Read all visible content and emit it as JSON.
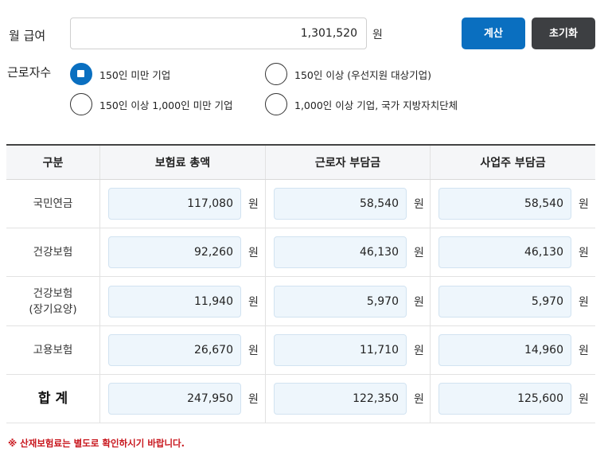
{
  "salary": {
    "label": "월 급여",
    "value": "1,301,520",
    "unit": "원"
  },
  "buttons": {
    "calc": "계산",
    "reset": "초기화"
  },
  "workers": {
    "label": "근로자수",
    "options": [
      {
        "label": "150인 미만 기업",
        "checked": true
      },
      {
        "label": "150인 이상 (우선지원 대상기업)",
        "checked": false
      },
      {
        "label": "150인 이상 1,000인 미만 기업",
        "checked": false
      },
      {
        "label": "1,000인 이상 기업, 국가 지방자치단체",
        "checked": false
      }
    ]
  },
  "table": {
    "headers": [
      "구분",
      "보험료 총액",
      "근로자 부담금",
      "사업주 부담금"
    ],
    "unit": "원",
    "rows": [
      {
        "label": "국민연금",
        "total": "117,080",
        "employee": "58,540",
        "employer": "58,540"
      },
      {
        "label": "건강보험",
        "total": "92,260",
        "employee": "46,130",
        "employer": "46,130"
      },
      {
        "label": "건강보험",
        "label2": "(장기요양)",
        "total": "11,940",
        "employee": "5,970",
        "employer": "5,970"
      },
      {
        "label": "고용보험",
        "total": "26,670",
        "employee": "11,710",
        "employer": "14,960"
      },
      {
        "label": "합 계",
        "total": "247,950",
        "employee": "122,350",
        "employer": "125,600"
      }
    ]
  },
  "note": "※ 산재보험료는 별도로 확인하시기 바랍니다.",
  "colors": {
    "accent": "#0a6fc0",
    "dark_button": "#3d3f42",
    "value_box": "#eef6fc",
    "note": "#c8161d"
  }
}
